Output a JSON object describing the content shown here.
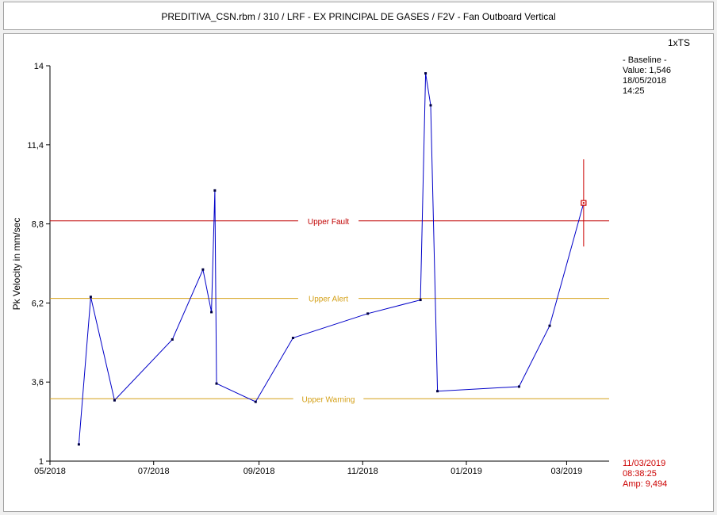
{
  "window": {
    "title": "PREDITIVA_CSN.rbm / 310 / LRF - EX PRINCIPAL DE GASES / F2V - Fan Outboard Vertical"
  },
  "colors": {
    "trend": "#0000c8",
    "fault": "#c00000",
    "alert": "#d4a017",
    "warning": "#d4a017",
    "cursor": "#cc0000",
    "axis": "#000000"
  },
  "chart_data": {
    "type": "line",
    "title": "",
    "xlabel": "",
    "ylabel": "Pk Velocity in mm/sec",
    "mode_label": "1xTS",
    "ylim": [
      1,
      14
    ],
    "yticks": [
      "1",
      "3,6",
      "6,2",
      "8,8",
      "11,4",
      "14"
    ],
    "ytick_values": [
      1,
      3.6,
      6.2,
      8.8,
      11.4,
      14
    ],
    "xlim": [
      "2018-05-01",
      "2019-03-26"
    ],
    "xticks": [
      {
        "label": "05/2018",
        "date": "2018-05-01"
      },
      {
        "label": "07/2018",
        "date": "2018-07-01"
      },
      {
        "label": "09/2018",
        "date": "2018-09-01"
      },
      {
        "label": "11/2018",
        "date": "2018-11-01"
      },
      {
        "label": "01/2019",
        "date": "2019-01-01"
      },
      {
        "label": "03/2019",
        "date": "2019-03-01"
      }
    ],
    "series": [
      {
        "points": [
          {
            "x": "2018-05-18",
            "y": 1.55
          },
          {
            "x": "2018-05-25",
            "y": 6.4
          },
          {
            "x": "2018-06-08",
            "y": 3.0
          },
          {
            "x": "2018-07-12",
            "y": 5.0
          },
          {
            "x": "2018-07-30",
            "y": 7.3
          },
          {
            "x": "2018-08-04",
            "y": 5.9
          },
          {
            "x": "2018-08-06",
            "y": 9.9
          },
          {
            "x": "2018-08-07",
            "y": 3.55
          },
          {
            "x": "2018-08-30",
            "y": 2.95
          },
          {
            "x": "2018-09-21",
            "y": 5.05
          },
          {
            "x": "2018-11-04",
            "y": 5.85
          },
          {
            "x": "2018-12-05",
            "y": 6.3
          },
          {
            "x": "2018-12-08",
            "y": 13.75
          },
          {
            "x": "2018-12-11",
            "y": 12.7
          },
          {
            "x": "2018-12-15",
            "y": 3.3
          },
          {
            "x": "2019-02-01",
            "y": 3.45
          },
          {
            "x": "2019-02-19",
            "y": 5.45
          },
          {
            "x": "2019-03-11",
            "y": 9.49
          }
        ]
      }
    ],
    "thresholds": [
      {
        "label": "Upper Fault",
        "value": 8.9
      },
      {
        "label": "Upper Alert",
        "value": 6.35
      },
      {
        "label": "Upper Warning",
        "value": 3.05
      }
    ],
    "baseline": {
      "label": "- Baseline -",
      "value_text": "Value: 1,546",
      "date": "18/05/2018",
      "time": "14:25"
    },
    "cursor": {
      "date_text": "11/03/2019",
      "time_text": "08:38:25",
      "amp_text": "Amp: 9,494",
      "x": "2019-03-11",
      "y": 9.49
    }
  }
}
